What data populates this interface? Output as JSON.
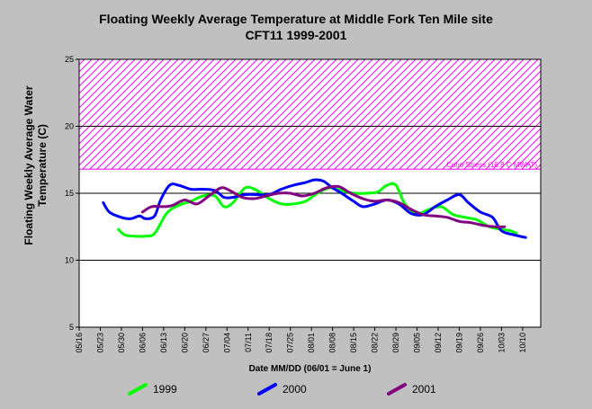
{
  "title_line1": "Floating Weekly Average Temperature at Middle Fork Ten Mile site",
  "title_line2": "CFT11 1999-2001",
  "chart_data": {
    "type": "line",
    "title": "Floating Weekly Average Temperature at Middle Fork Ten Mile site CFT11 1999-2001",
    "xlabel": "Date MM/DD (06/01 = June 1)",
    "ylabel": "Floating Weekly Average Water Temperature (C)",
    "ylim": [
      5,
      25
    ],
    "yticks": [
      5,
      10,
      15,
      20,
      25
    ],
    "xlim": [
      "05/16",
      "10/16"
    ],
    "xticks": [
      "05/16",
      "05/23",
      "05/30",
      "06/06",
      "06/13",
      "06/20",
      "06/27",
      "07/04",
      "07/11",
      "07/18",
      "07/25",
      "08/01",
      "08/08",
      "08/15",
      "08/22",
      "08/29",
      "09/05",
      "09/12",
      "09/19",
      "09/26",
      "10/03",
      "10/10"
    ],
    "grid": "horizontal",
    "legend_position": "bottom",
    "threshold": {
      "label": "Coho Stress (16.8 C MWAT)",
      "y_from": 16.8,
      "y_to": 25,
      "color": "#ff00ff"
    },
    "series": [
      {
        "name": "1999",
        "color": "#00ff00",
        "x": [
          "05/29",
          "05/31",
          "06/03",
          "06/07",
          "06/10",
          "06/14",
          "06/18",
          "06/22",
          "06/26",
          "06/30",
          "07/03",
          "07/06",
          "07/10",
          "07/14",
          "07/18",
          "07/22",
          "07/26",
          "07/30",
          "08/03",
          "08/07",
          "08/11",
          "08/15",
          "08/19",
          "08/23",
          "08/26",
          "08/29",
          "09/01",
          "09/05",
          "09/09",
          "09/13",
          "09/17",
          "09/21",
          "09/25",
          "09/29",
          "10/03",
          "10/06",
          "10/08"
        ],
        "y": [
          12.3,
          11.9,
          11.8,
          11.8,
          12.0,
          13.5,
          14.1,
          14.4,
          14.8,
          14.8,
          14.0,
          14.3,
          15.4,
          15.2,
          14.6,
          14.2,
          14.2,
          14.4,
          15.0,
          15.4,
          15.2,
          15.0,
          15.0,
          15.1,
          15.6,
          15.6,
          14.2,
          13.5,
          13.8,
          14.0,
          13.4,
          13.2,
          13.0,
          12.5,
          12.3,
          12.2,
          12.0
        ]
      },
      {
        "name": "2000",
        "color": "#0000ff",
        "x": [
          "05/24",
          "05/26",
          "05/30",
          "06/02",
          "06/05",
          "06/07",
          "06/10",
          "06/12",
          "06/15",
          "06/18",
          "06/22",
          "06/26",
          "06/30",
          "07/03",
          "07/06",
          "07/10",
          "07/14",
          "07/18",
          "07/22",
          "07/26",
          "07/30",
          "08/02",
          "08/05",
          "08/08",
          "08/11",
          "08/15",
          "08/18",
          "08/22",
          "08/26",
          "08/30",
          "09/03",
          "09/07",
          "09/11",
          "09/15",
          "09/19",
          "09/22",
          "09/26",
          "09/30",
          "10/03",
          "10/07",
          "10/11"
        ],
        "y": [
          14.3,
          13.6,
          13.2,
          13.1,
          13.3,
          13.1,
          13.3,
          14.5,
          15.6,
          15.6,
          15.3,
          15.3,
          15.2,
          14.7,
          14.7,
          14.9,
          14.9,
          14.9,
          15.3,
          15.6,
          15.8,
          16.0,
          15.9,
          15.4,
          15.0,
          14.4,
          14.0,
          14.2,
          14.5,
          14.2,
          13.5,
          13.4,
          14.0,
          14.5,
          14.9,
          14.3,
          13.6,
          13.2,
          12.2,
          11.9,
          11.7
        ]
      },
      {
        "name": "2001",
        "color": "#800080",
        "x": [
          "06/06",
          "06/09",
          "06/13",
          "06/16",
          "06/20",
          "06/24",
          "06/28",
          "07/02",
          "07/05",
          "07/09",
          "07/13",
          "07/17",
          "07/21",
          "07/25",
          "07/29",
          "08/02",
          "08/06",
          "08/10",
          "08/14",
          "08/18",
          "08/22",
          "08/26",
          "08/30",
          "09/03",
          "09/07",
          "09/11",
          "09/15",
          "09/19",
          "09/23",
          "09/27",
          "10/01",
          "10/04"
        ],
        "y": [
          13.6,
          14.0,
          14.0,
          14.1,
          14.5,
          14.2,
          14.8,
          15.4,
          15.2,
          14.7,
          14.6,
          14.8,
          15.0,
          15.0,
          14.8,
          15.0,
          15.4,
          15.5,
          15.0,
          14.6,
          14.4,
          14.5,
          14.3,
          13.8,
          13.4,
          13.3,
          13.2,
          12.9,
          12.8,
          12.6,
          12.5,
          12.5
        ]
      }
    ]
  }
}
